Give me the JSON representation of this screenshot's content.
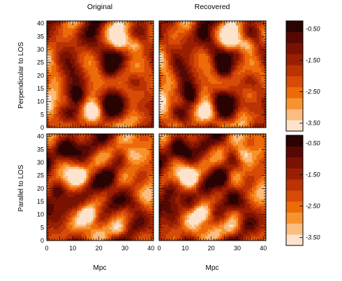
{
  "chart_data": {
    "type": "heatmap",
    "column_titles": [
      "Original",
      "Recovered"
    ],
    "row_labels": [
      "Perpendicular to LOS",
      "Parallel to LOS"
    ],
    "xlabel": "Mpc",
    "ylabel": "",
    "x_range": [
      0,
      41
    ],
    "y_range": [
      0,
      41
    ],
    "x_ticks": [
      "0",
      "10",
      "20",
      "30",
      "40"
    ],
    "y_ticks": [
      "0",
      "5",
      "10",
      "15",
      "20",
      "25",
      "30",
      "35",
      "40"
    ],
    "colorbar": {
      "range": [
        -3.75,
        -0.25
      ],
      "levels": 10,
      "ticks": [
        "-0.50",
        "-1.50",
        "-2.50",
        "-3.50"
      ],
      "colors": [
        "#fde3cc",
        "#fbbc80",
        "#f7932f",
        "#ed6a09",
        "#d74a07",
        "#bb3204",
        "#9a1f02",
        "#7a1202",
        "#560805",
        "#2a0303"
      ]
    },
    "panels": [
      {
        "row": 0,
        "col": 0,
        "title": "Original",
        "row_label": "Perpendicular to LOS",
        "seed": 11,
        "bright_spots": [
          [
            34,
            32
          ],
          [
            28,
            33
          ],
          [
            8,
            10
          ],
          [
            18,
            6
          ]
        ],
        "dark_spots": [
          [
            33,
            18
          ],
          [
            24,
            22
          ],
          [
            12,
            12
          ],
          [
            36,
            8
          ]
        ]
      },
      {
        "row": 0,
        "col": 1,
        "title": "Recovered",
        "row_label": "Perpendicular to LOS",
        "seed": 11,
        "bright_spots": [
          [
            34,
            32
          ],
          [
            28,
            33
          ],
          [
            8,
            10
          ],
          [
            18,
            6
          ]
        ],
        "dark_spots": [
          [
            33,
            18
          ],
          [
            24,
            22
          ],
          [
            12,
            12
          ],
          [
            36,
            8
          ]
        ]
      },
      {
        "row": 1,
        "col": 0,
        "title": "Original",
        "row_label": "Parallel to LOS",
        "seed": 23,
        "bright_spots": [
          [
            12,
            25
          ],
          [
            32,
            33
          ],
          [
            16,
            10
          ],
          [
            28,
            4
          ]
        ],
        "dark_spots": [
          [
            24,
            24
          ],
          [
            34,
            14
          ],
          [
            7,
            35
          ],
          [
            4,
            20
          ]
        ]
      },
      {
        "row": 1,
        "col": 1,
        "title": "Recovered",
        "row_label": "Parallel to LOS",
        "seed": 23,
        "bright_spots": [
          [
            12,
            25
          ],
          [
            32,
            33
          ],
          [
            16,
            10
          ],
          [
            28,
            4
          ]
        ],
        "dark_spots": [
          [
            24,
            24
          ],
          [
            34,
            14
          ],
          [
            7,
            35
          ],
          [
            4,
            20
          ]
        ]
      }
    ]
  }
}
